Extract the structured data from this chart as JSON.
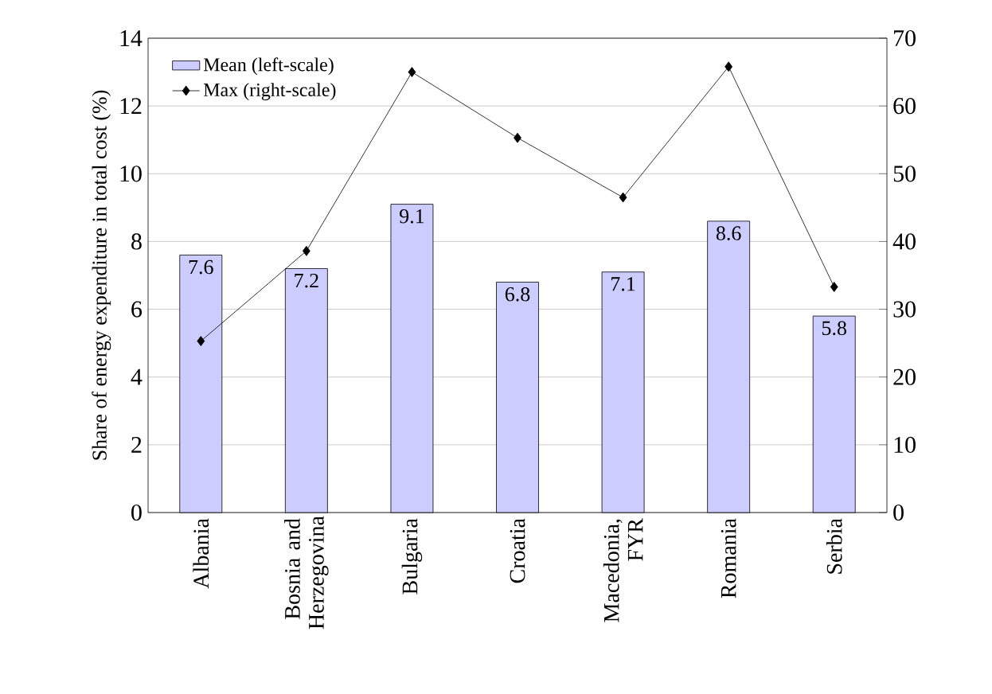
{
  "chart_data": {
    "type": "bar",
    "ylabel": "Share of energy expenditure in total cost (%)",
    "categories": [
      "Albania",
      "Bosnia and Herzegovina",
      "Bulgaria",
      "Croatia",
      "Macedonia, FYR",
      "Romania",
      "Serbia"
    ],
    "series": [
      {
        "name": "Mean (left-scale)",
        "color": "#ccccff",
        "values": [
          7.6,
          7.2,
          9.1,
          6.8,
          7.1,
          8.6,
          5.8
        ],
        "value_labels": [
          "7.6",
          "7.2",
          "9.1",
          "6.8",
          "7.1",
          "8.6",
          "5.8"
        ]
      },
      {
        "name": "Max (right-scale)",
        "type": "line",
        "axis": "y2",
        "color": "#000000",
        "marker": "diamond",
        "line_style": "solid",
        "values": [
          25.3,
          38.6,
          65.0,
          55.3,
          46.5,
          65.8,
          33.3
        ]
      }
    ],
    "ylim": [
      0,
      14
    ],
    "yticks": [
      0,
      2,
      4,
      6,
      8,
      10,
      12,
      14
    ],
    "y2lim": [
      0,
      70
    ],
    "y2ticks": [
      0,
      10,
      20,
      30,
      40,
      50,
      60,
      70
    ],
    "grid": "y",
    "legend": "top left"
  }
}
